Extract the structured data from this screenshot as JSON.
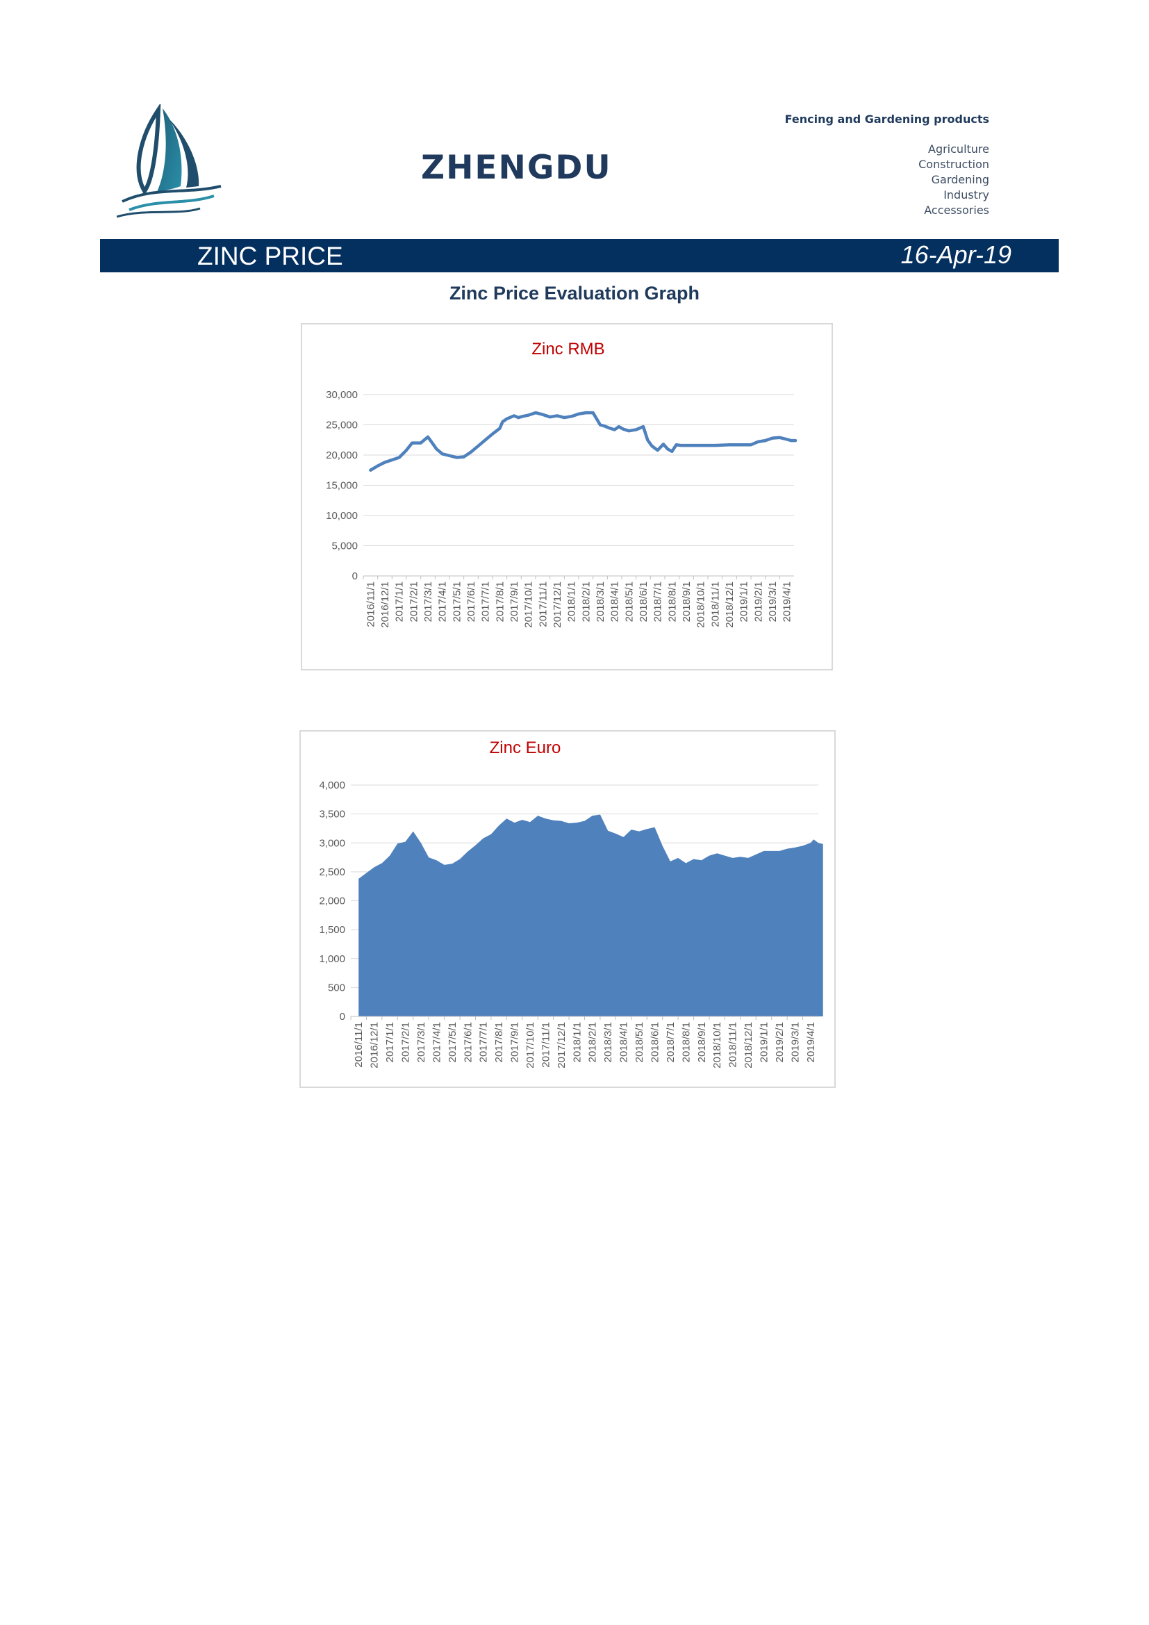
{
  "header": {
    "brand": "ZHENGDU",
    "tagline": "Fencing and Gardening products",
    "categories": [
      "Agriculture",
      "Construction",
      "Gardening",
      "Industry",
      "Accessories"
    ]
  },
  "banner": {
    "title": "ZINC PRICE",
    "date": "16-Apr-19",
    "color": "#04305f"
  },
  "section_title": "Zinc Price Evaluation Graph",
  "chart_data": [
    {
      "type": "line",
      "title": "Zinc RMB",
      "color": "#4f81bd",
      "title_color": "#c00000",
      "ylim": [
        0,
        30000
      ],
      "yticks": [
        0,
        5000,
        10000,
        15000,
        20000,
        25000,
        30000
      ],
      "ytick_labels": [
        "0",
        "5,000",
        "10,000",
        "15,000",
        "20,000",
        "25,000",
        "30,000"
      ],
      "grid": true,
      "legend": "none",
      "categories": [
        "2016/11/1",
        "2016/12/1",
        "2017/1/1",
        "2017/2/1",
        "2017/3/1",
        "2017/4/1",
        "2017/5/1",
        "2017/6/1",
        "2017/7/1",
        "2017/8/1",
        "2017/9/1",
        "2017/10/1",
        "2017/11/1",
        "2017/12/1",
        "2018/1/1",
        "2018/2/1",
        "2018/3/1",
        "2018/4/1",
        "2018/5/1",
        "2018/6/1",
        "2018/7/1",
        "2018/8/1",
        "2018/9/1",
        "2018/10/1",
        "2018/11/1",
        "2018/12/1",
        "2019/1/1",
        "2019/2/1",
        "2019/3/1",
        "2019/4/1"
      ],
      "x": [
        0,
        0.5,
        1,
        1.5,
        2,
        2.5,
        2.9,
        3.2,
        3.5,
        4,
        4.3,
        4.6,
        5,
        5.5,
        6,
        6.5,
        7,
        7.5,
        8,
        8.5,
        9,
        9.2,
        9.5,
        10,
        10.3,
        10.6,
        11,
        11.5,
        12,
        12.5,
        13,
        13.5,
        14,
        14.5,
        15,
        15.5,
        16,
        16.3,
        16.6,
        17,
        17.3,
        17.6,
        18,
        18.5,
        19,
        19.3,
        19.6,
        20,
        20.4,
        20.7,
        21,
        21.3,
        21.6,
        22,
        23,
        24,
        25,
        26,
        26.5,
        27,
        27.5,
        28,
        28.5,
        29,
        29.3,
        29.6
      ],
      "values": [
        17500,
        18200,
        18800,
        19200,
        19600,
        20800,
        22000,
        22000,
        22000,
        23000,
        22000,
        21000,
        20200,
        19900,
        19600,
        19700,
        20500,
        21500,
        22500,
        23500,
        24400,
        25500,
        26000,
        26500,
        26200,
        26400,
        26600,
        27000,
        26700,
        26300,
        26500,
        26200,
        26400,
        26800,
        27000,
        27000,
        25000,
        24800,
        24500,
        24200,
        24700,
        24300,
        24000,
        24200,
        24700,
        22500,
        21500,
        20800,
        21800,
        21000,
        20600,
        21700,
        21600,
        21600,
        21600,
        21600,
        21700,
        21700,
        21700,
        22200,
        22400,
        22800,
        22900,
        22600,
        22400,
        22400
      ]
    },
    {
      "type": "area",
      "title": "Zinc Euro",
      "color": "#4f81bd",
      "title_color": "#c00000",
      "ylim": [
        0,
        4000
      ],
      "yticks": [
        0,
        500,
        1000,
        1500,
        2000,
        2500,
        3000,
        3500,
        4000
      ],
      "ytick_labels": [
        "0",
        "500",
        "1,000",
        "1,500",
        "2,000",
        "2,500",
        "3,000",
        "3,500",
        "4,000"
      ],
      "grid": true,
      "legend": "none",
      "categories": [
        "2016/11/1",
        "2016/12/1",
        "2017/1/1",
        "2017/2/1",
        "2017/3/1",
        "2017/4/1",
        "2017/5/1",
        "2017/6/1",
        "2017/7/1",
        "2017/8/1",
        "2017/9/1",
        "2017/10/1",
        "2017/11/1",
        "2017/12/1",
        "2018/1/1",
        "2018/2/1",
        "2018/3/1",
        "2018/4/1",
        "2018/5/1",
        "2018/6/1",
        "2018/7/1",
        "2018/8/1",
        "2018/9/1",
        "2018/10/1",
        "2018/11/1",
        "2018/12/1",
        "2019/1/1",
        "2019/2/1",
        "2019/3/1",
        "2019/4/1"
      ],
      "x": [
        0,
        0.5,
        1,
        1.5,
        2,
        2.5,
        3,
        3.5,
        4,
        4.5,
        5,
        5.5,
        6,
        6.5,
        7,
        7.5,
        8,
        8.5,
        9,
        9.5,
        10,
        10.5,
        11,
        11.5,
        12,
        12.5,
        13,
        13.5,
        14,
        14.5,
        15,
        15.5,
        16,
        16.5,
        17,
        17.5,
        18,
        18.5,
        19,
        19.5,
        20,
        20.5,
        21,
        21.5,
        22,
        22.5,
        23,
        23.5,
        24,
        24.5,
        25,
        25.5,
        26,
        26.5,
        27,
        27.5,
        28,
        28.5,
        29,
        29.2,
        29.5,
        29.8
      ],
      "values": [
        2380,
        2480,
        2580,
        2650,
        2780,
        2990,
        3020,
        3200,
        3000,
        2750,
        2700,
        2620,
        2640,
        2720,
        2850,
        2960,
        3080,
        3150,
        3300,
        3420,
        3350,
        3400,
        3360,
        3470,
        3420,
        3390,
        3380,
        3340,
        3350,
        3380,
        3470,
        3490,
        3210,
        3160,
        3100,
        3230,
        3200,
        3240,
        3270,
        2950,
        2680,
        2740,
        2650,
        2720,
        2700,
        2780,
        2820,
        2780,
        2740,
        2760,
        2740,
        2800,
        2860,
        2860,
        2860,
        2900,
        2920,
        2950,
        3000,
        3060,
        3000,
        2980
      ]
    }
  ]
}
